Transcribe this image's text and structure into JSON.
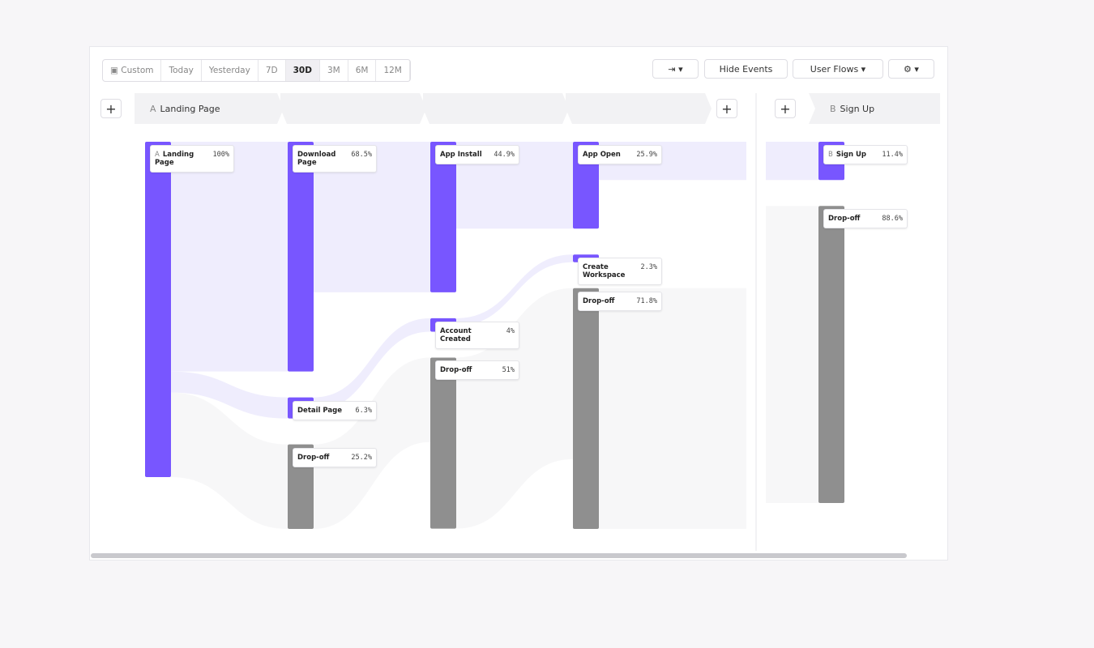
{
  "toolbar": {
    "ranges": [
      "Custom",
      "Today",
      "Yesterday",
      "7D",
      "30D",
      "3M",
      "6M",
      "12M"
    ],
    "selected_range": "30D",
    "actions": [
      "Hide Events",
      "User Flows"
    ]
  },
  "steps": [
    {
      "letter": "A",
      "label": "Landing Page"
    },
    {
      "letter": "B",
      "label": "Sign Up"
    }
  ],
  "columns": [
    [
      {
        "letter": "A",
        "name": "Landing Page",
        "value": 100,
        "label": "100%",
        "color": "#7856ff"
      }
    ],
    [
      {
        "name": "Download Page",
        "value": 68.5,
        "label": "68.5%",
        "color": "#7856ff"
      },
      {
        "name": "Detail Page",
        "value": 6.3,
        "label": "6.3%",
        "color": "#7856ff"
      },
      {
        "name": "Drop-off",
        "value": 25.2,
        "label": "25.2%",
        "color": "#8f8f8f"
      }
    ],
    [
      {
        "name": "App Install",
        "value": 44.9,
        "label": "44.9%",
        "color": "#7856ff"
      },
      {
        "name": "Account Created",
        "value": 4,
        "label": "4%",
        "color": "#7856ff"
      },
      {
        "name": "Drop-off",
        "value": 51,
        "label": "51%",
        "color": "#8f8f8f"
      }
    ],
    [
      {
        "name": "App Open",
        "value": 25.9,
        "label": "25.9%",
        "color": "#7856ff"
      },
      {
        "name": "Create Workspace",
        "value": 2.3,
        "label": "2.3%",
        "color": "#7856ff"
      },
      {
        "name": "Drop-off",
        "value": 71.8,
        "label": "71.8%",
        "color": "#8f8f8f"
      }
    ],
    [
      {
        "letter": "B",
        "name": "Sign Up",
        "value": 11.4,
        "label": "11.4%",
        "color": "#7856ff"
      },
      {
        "name": "Drop-off",
        "value": 88.6,
        "label": "88.6%",
        "color": "#8f8f8f"
      }
    ]
  ]
}
